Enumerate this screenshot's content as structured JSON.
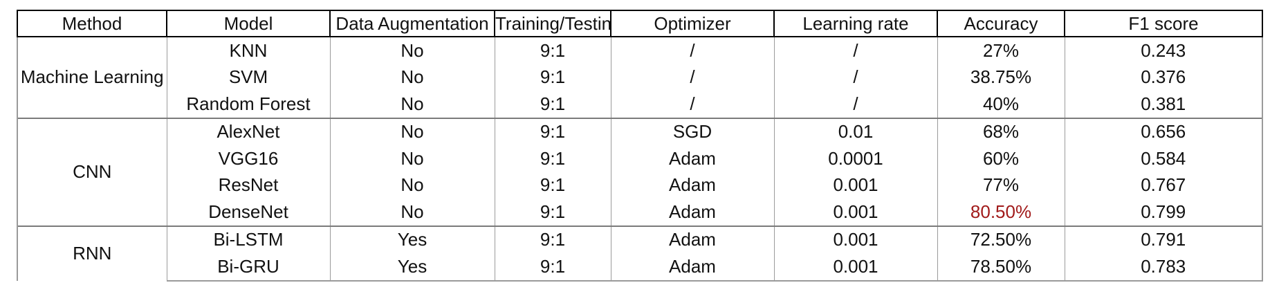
{
  "table": {
    "columns": [
      "Method",
      "Model",
      "Data Augmentation",
      "Training/Testing",
      "Optimizer",
      "Learning rate",
      "Accuracy",
      "F1 score"
    ],
    "groups": [
      {
        "method": "Machine Learning",
        "rows": [
          {
            "model": "KNN",
            "augmentation": "No",
            "split": "9:1",
            "optimizer": "/",
            "learning_rate": "/",
            "accuracy": "27%",
            "f1": "0.243"
          },
          {
            "model": "SVM",
            "augmentation": "No",
            "split": "9:1",
            "optimizer": "/",
            "learning_rate": "/",
            "accuracy": "38.75%",
            "f1": "0.376"
          },
          {
            "model": "Random Forest",
            "augmentation": "No",
            "split": "9:1",
            "optimizer": "/",
            "learning_rate": "/",
            "accuracy": "40%",
            "f1": "0.381"
          }
        ]
      },
      {
        "method": "CNN",
        "rows": [
          {
            "model": "AlexNet",
            "augmentation": "No",
            "split": "9:1",
            "optimizer": "SGD",
            "learning_rate": "0.01",
            "accuracy": "68%",
            "f1": "0.656"
          },
          {
            "model": "VGG16",
            "augmentation": "No",
            "split": "9:1",
            "optimizer": "Adam",
            "learning_rate": "0.0001",
            "accuracy": "60%",
            "f1": "0.584"
          },
          {
            "model": "ResNet",
            "augmentation": "No",
            "split": "9:1",
            "optimizer": "Adam",
            "learning_rate": "0.001",
            "accuracy": "77%",
            "f1": "0.767"
          },
          {
            "model": "DenseNet",
            "augmentation": "No",
            "split": "9:1",
            "optimizer": "Adam",
            "learning_rate": "0.001",
            "accuracy": "80.50%",
            "f1": "0.799"
          }
        ]
      },
      {
        "method": "RNN",
        "rows": [
          {
            "model": "Bi-LSTM",
            "augmentation": "Yes",
            "split": "9:1",
            "optimizer": "Adam",
            "learning_rate": "0.001",
            "accuracy": "72.50%",
            "f1": "0.791"
          },
          {
            "model": "Bi-GRU",
            "augmentation": "Yes",
            "split": "9:1",
            "optimizer": "Adam",
            "learning_rate": "0.001",
            "accuracy": "78.50%",
            "f1": "0.783"
          }
        ]
      }
    ],
    "highlight": {
      "group": 1,
      "row": 3,
      "field": "accuracy",
      "color": "#a11a1a"
    }
  }
}
